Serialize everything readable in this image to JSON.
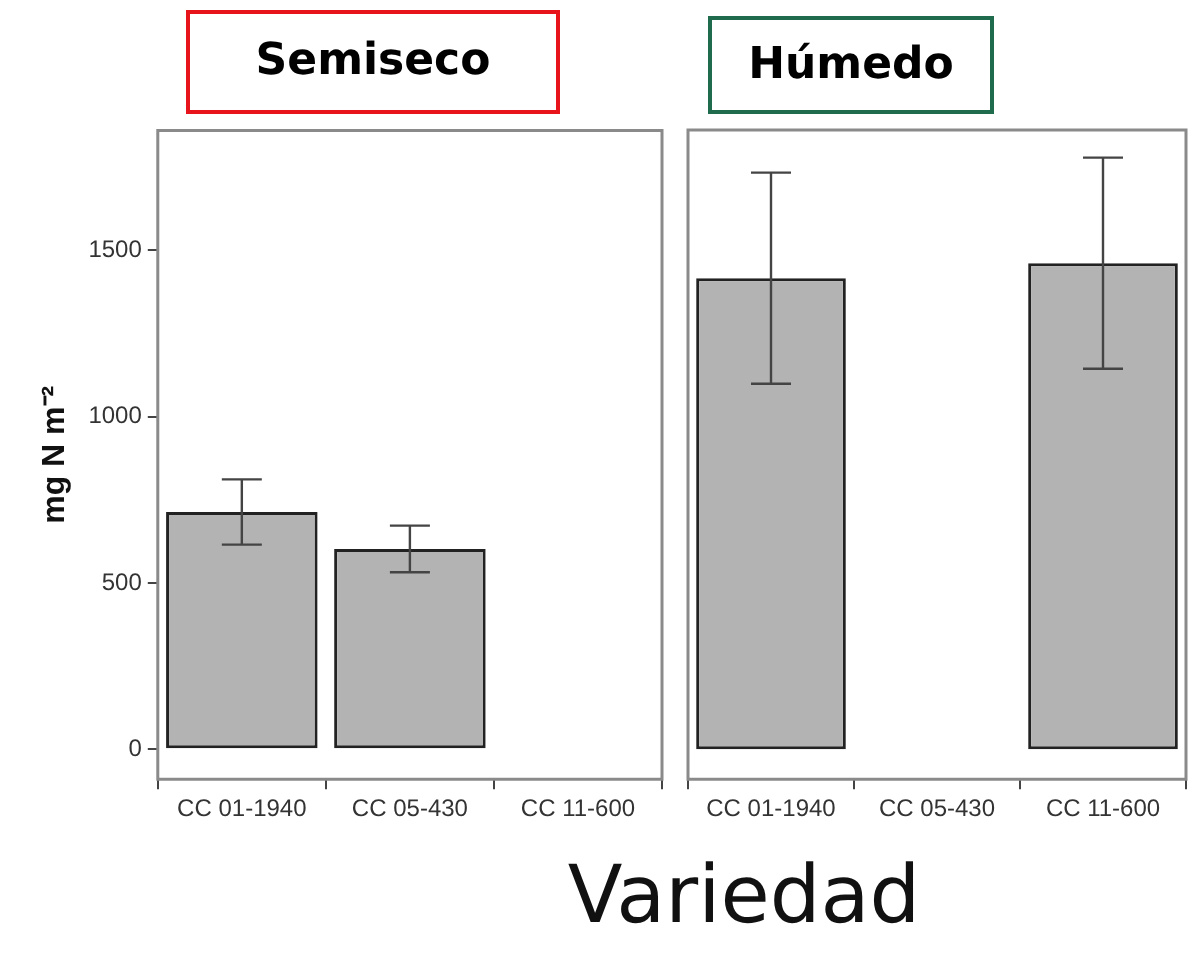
{
  "chart_data": [
    {
      "type": "bar",
      "title": "Semiseco",
      "ylabel": "mg N m⁻²",
      "categories": [
        "CC 01-1940",
        "CC 05-430",
        "CC 11-600"
      ],
      "values": [
        713,
        602,
        null
      ],
      "errors": [
        98,
        70,
        null
      ],
      "color": "#b3b3b3",
      "ylim": [
        -90,
        1860
      ],
      "yticks": [
        0,
        500,
        1000,
        1500
      ],
      "grid": false
    },
    {
      "type": "bar",
      "title": "Húmedo",
      "xlabel": "Variedad",
      "categories": [
        "CC 01-1940",
        "CC 05-430",
        "CC 11-600"
      ],
      "values": [
        1415,
        null,
        1460
      ],
      "errors": [
        317,
        null,
        317
      ],
      "color": "#b3b3b3",
      "ylim": [
        -90,
        1860
      ],
      "yticks": [
        0,
        500,
        1000,
        1500
      ],
      "grid": false,
      "tick_labels": "x"
    }
  ]
}
